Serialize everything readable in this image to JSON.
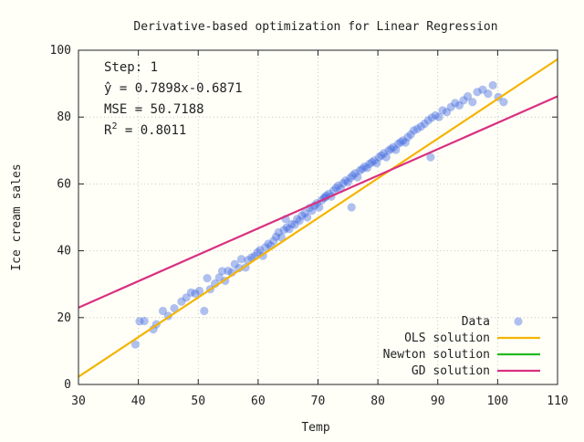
{
  "chart_data": {
    "type": "scatter",
    "title": "Derivative-based optimization for Linear Regression",
    "xlabel": "Temp",
    "ylabel": "Ice cream sales",
    "xlim": [
      30,
      110
    ],
    "ylim": [
      0,
      100
    ],
    "xticks": [
      30,
      40,
      50,
      60,
      70,
      80,
      90,
      100,
      110
    ],
    "yticks": [
      0,
      20,
      40,
      60,
      80,
      100
    ],
    "grid": true,
    "legend_position": "bottom-right",
    "annotation": {
      "step": "Step: 1",
      "equation": "ŷ = 0.7898x-0.6871",
      "mse": "MSE = 50.7188",
      "r2_prefix": "R",
      "r2_exp": "2",
      "r2_value": " = 0.8011"
    },
    "series": [
      {
        "name": "Data",
        "kind": "scatter",
        "color": "#4169e1",
        "x": [
          39.5,
          40.2,
          41.0,
          42.5,
          43.0,
          44.1,
          45.0,
          46.0,
          47.2,
          48.0,
          48.8,
          49.5,
          50.2,
          51.0,
          51.5,
          52.0,
          52.8,
          53.5,
          54.0,
          54.5,
          55.0,
          55.6,
          56.1,
          56.8,
          57.2,
          57.9,
          58.3,
          58.9,
          59.4,
          59.9,
          60.3,
          60.8,
          61.2,
          61.7,
          62.1,
          62.6,
          63.0,
          63.4,
          63.9,
          64.3,
          64.8,
          65.2,
          65.6,
          66.1,
          66.5,
          66.9,
          67.3,
          67.8,
          68.2,
          68.6,
          69.0,
          69.4,
          69.8,
          70.2,
          70.6,
          71.0,
          71.4,
          71.8,
          72.2,
          72.6,
          73.0,
          73.4,
          73.8,
          74.2,
          74.6,
          75.0,
          75.4,
          75.8,
          76.2,
          76.6,
          77.0,
          77.4,
          77.8,
          78.2,
          78.6,
          79.0,
          79.4,
          79.8,
          80.2,
          80.6,
          81.0,
          81.4,
          81.8,
          82.2,
          82.6,
          83.0,
          83.4,
          83.8,
          84.2,
          84.6,
          85.0,
          85.5,
          86.0,
          86.6,
          87.2,
          87.8,
          88.4,
          89.0,
          89.6,
          90.2,
          90.8,
          91.5,
          92.2,
          92.9,
          93.6,
          94.3,
          95.0,
          95.8,
          96.6,
          97.5,
          98.4,
          99.2,
          100.1,
          101.0,
          75.6,
          71.2,
          64.6,
          88.8
        ],
        "y": [
          12.0,
          18.9,
          19.0,
          16.5,
          18.0,
          22.0,
          20.5,
          22.8,
          24.8,
          26.0,
          27.5,
          27.2,
          28.0,
          22.0,
          31.8,
          28.5,
          30.2,
          32.0,
          33.9,
          31.0,
          34.0,
          33.5,
          36.0,
          34.8,
          37.5,
          35.0,
          37.2,
          38.0,
          38.4,
          39.5,
          40.2,
          38.5,
          41.0,
          42.1,
          41.5,
          43.0,
          44.2,
          45.5,
          44.0,
          46.2,
          47.0,
          46.5,
          48.0,
          47.8,
          49.5,
          49.0,
          50.5,
          51.2,
          50.0,
          52.8,
          52.0,
          53.5,
          54.2,
          53.0,
          55.1,
          55.8,
          56.5,
          57.0,
          56.2,
          58.0,
          58.8,
          59.5,
          58.6,
          60.2,
          61.0,
          60.5,
          61.8,
          62.5,
          63.2,
          62.0,
          64.0,
          64.5,
          65.2,
          64.8,
          66.0,
          66.5,
          67.0,
          66.2,
          68.0,
          68.5,
          69.2,
          68.0,
          70.0,
          70.5,
          71.0,
          70.2,
          72.0,
          72.5,
          73.0,
          72.4,
          74.0,
          74.8,
          76.0,
          76.5,
          77.2,
          78.0,
          79.0,
          79.8,
          80.5,
          80.0,
          82.0,
          81.5,
          83.0,
          84.2,
          83.5,
          85.0,
          86.2,
          84.5,
          87.5,
          88.2,
          87.0,
          89.5,
          86.0,
          84.5,
          53.0,
          56.0,
          49.5,
          68.0
        ]
      },
      {
        "name": "OLS solution",
        "kind": "line",
        "color": "#f4b400",
        "x": [
          30,
          110
        ],
        "y": [
          2.3,
          97.3
        ]
      },
      {
        "name": "Newton solution",
        "kind": "line",
        "color": "#22bb22",
        "x": [],
        "y": []
      },
      {
        "name": "GD solution",
        "kind": "line",
        "color": "#d9307f",
        "x": [
          30,
          110
        ],
        "y": [
          23.0,
          86.2
        ]
      }
    ]
  }
}
